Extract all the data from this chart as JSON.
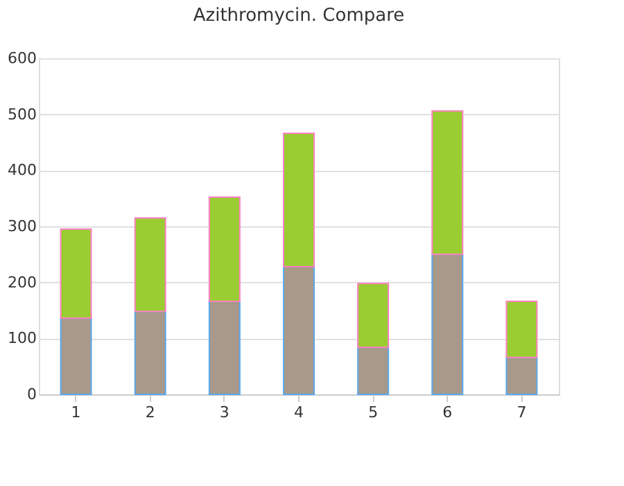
{
  "chart_data": {
    "type": "bar",
    "title": "Azithromycin. Compare",
    "categories": [
      "1",
      "2",
      "3",
      "4",
      "5",
      "6",
      "7"
    ],
    "stacked": true,
    "series": [
      {
        "color": "#a8998a",
        "values": [
          136,
          148,
          166,
          228,
          84,
          250,
          66
        ]
      },
      {
        "color": "#9acd32",
        "values": [
          159,
          167,
          186,
          238,
          114,
          256,
          100
        ]
      }
    ],
    "ylim": [
      0,
      600
    ],
    "yticks": [
      0,
      100,
      200,
      300,
      400,
      500,
      600
    ],
    "grid": "y"
  }
}
